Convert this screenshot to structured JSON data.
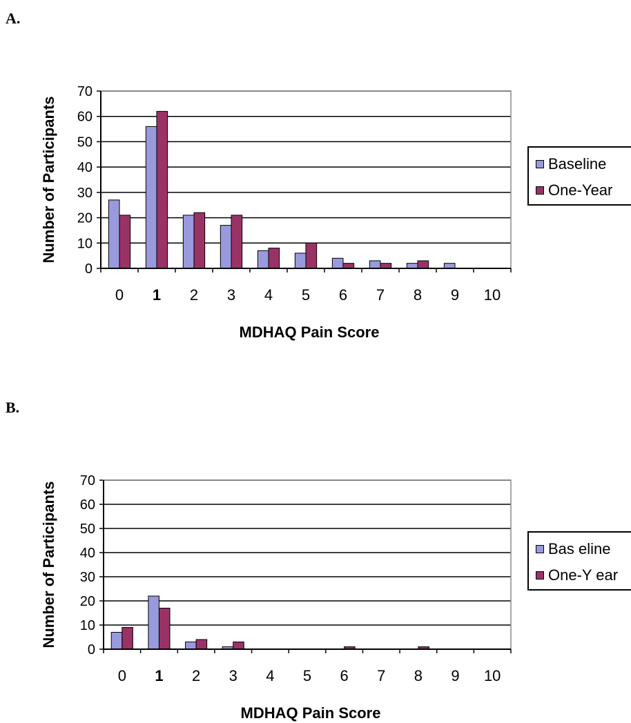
{
  "panels": [
    {
      "label": "A.",
      "legend": {
        "baseline": "Baseline",
        "one_year": "One-Year"
      }
    },
    {
      "label": "B.",
      "legend": {
        "baseline": "Bas eline",
        "one_year": "One-Y ear"
      }
    }
  ],
  "colors": {
    "baseline": "#9999dd",
    "one_year": "#993366",
    "frame": "#000000"
  },
  "chart_data": [
    {
      "type": "bar",
      "title": "",
      "xlabel": "MDHAQ Pain Score",
      "ylabel": "Number of Participants",
      "categories": [
        "0",
        "1",
        "2",
        "3",
        "4",
        "5",
        "6",
        "7",
        "8",
        "9",
        "10"
      ],
      "yticks": [
        "0",
        "10",
        "20",
        "30",
        "40",
        "50",
        "60",
        "70"
      ],
      "ylim": [
        0,
        70
      ],
      "grid": true,
      "legend_position": "right",
      "series": [
        {
          "name": "Baseline",
          "values": [
            27,
            56,
            21,
            17,
            7,
            6,
            4,
            3,
            2,
            2,
            0
          ]
        },
        {
          "name": "One-Year",
          "values": [
            21,
            62,
            22,
            21,
            8,
            10,
            2,
            2,
            3,
            0,
            0
          ]
        }
      ]
    },
    {
      "type": "bar",
      "title": "",
      "xlabel": "MDHAQ Pain Score",
      "ylabel": "Number of Participants",
      "categories": [
        "0",
        "1",
        "2",
        "3",
        "4",
        "5",
        "6",
        "7",
        "8",
        "9",
        "10"
      ],
      "yticks": [
        "0",
        "10",
        "20",
        "30",
        "40",
        "50",
        "60",
        "70"
      ],
      "ylim": [
        0,
        70
      ],
      "grid": true,
      "legend_position": "right",
      "series": [
        {
          "name": "Baseline",
          "values": [
            7,
            22,
            3,
            1,
            0,
            0,
            0,
            0,
            0,
            0,
            0
          ]
        },
        {
          "name": "One-Year",
          "values": [
            9,
            17,
            4,
            3,
            0,
            0,
            1,
            0,
            1,
            0,
            0
          ]
        }
      ]
    }
  ]
}
